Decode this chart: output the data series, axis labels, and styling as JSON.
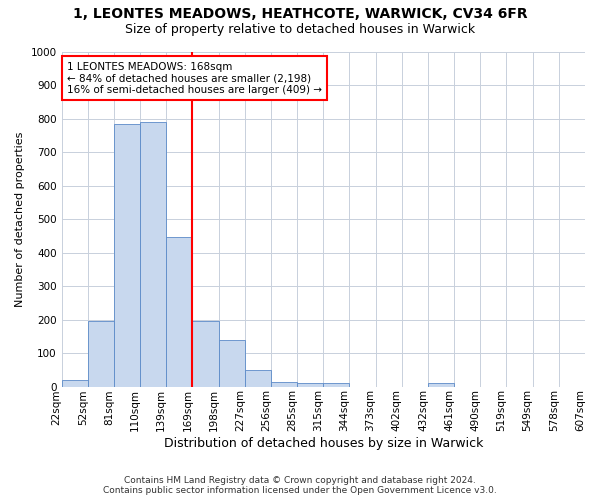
{
  "title1": "1, LEONTES MEADOWS, HEATHCOTE, WARWICK, CV34 6FR",
  "title2": "Size of property relative to detached houses in Warwick",
  "xlabel": "Distribution of detached houses by size in Warwick",
  "ylabel": "Number of detached properties",
  "bar_values": [
    20,
    195,
    785,
    790,
    445,
    195,
    140,
    50,
    15,
    12,
    12,
    0,
    0,
    0,
    10,
    0,
    0,
    0,
    0,
    0
  ],
  "bar_labels": [
    "22sqm",
    "52sqm",
    "81sqm",
    "110sqm",
    "139sqm",
    "169sqm",
    "198sqm",
    "227sqm",
    "256sqm",
    "285sqm",
    "315sqm",
    "344sqm",
    "373sqm",
    "402sqm",
    "432sqm",
    "461sqm",
    "490sqm",
    "519sqm",
    "549sqm",
    "578sqm",
    "607sqm"
  ],
  "bar_color": "#c8d8ee",
  "bar_edge_color": "#5b8ac8",
  "vline_color": "red",
  "vline_x_index": 5.0,
  "annotation_line1": "1 LEONTES MEADOWS: 168sqm",
  "annotation_line2": "← 84% of detached houses are smaller (2,198)",
  "annotation_line3": "16% of semi-detached houses are larger (409) →",
  "annotation_box_color": "white",
  "annotation_box_edge_color": "red",
  "ylim": [
    0,
    1000
  ],
  "yticks": [
    0,
    100,
    200,
    300,
    400,
    500,
    600,
    700,
    800,
    900,
    1000
  ],
  "grid_color": "#c8d0dc",
  "bg_color": "#ffffff",
  "footer1": "Contains HM Land Registry data © Crown copyright and database right 2024.",
  "footer2": "Contains public sector information licensed under the Open Government Licence v3.0.",
  "title1_fontsize": 10,
  "title2_fontsize": 9,
  "xlabel_fontsize": 9,
  "ylabel_fontsize": 8,
  "tick_fontsize": 7.5,
  "annotation_fontsize": 7.5,
  "footer_fontsize": 6.5
}
